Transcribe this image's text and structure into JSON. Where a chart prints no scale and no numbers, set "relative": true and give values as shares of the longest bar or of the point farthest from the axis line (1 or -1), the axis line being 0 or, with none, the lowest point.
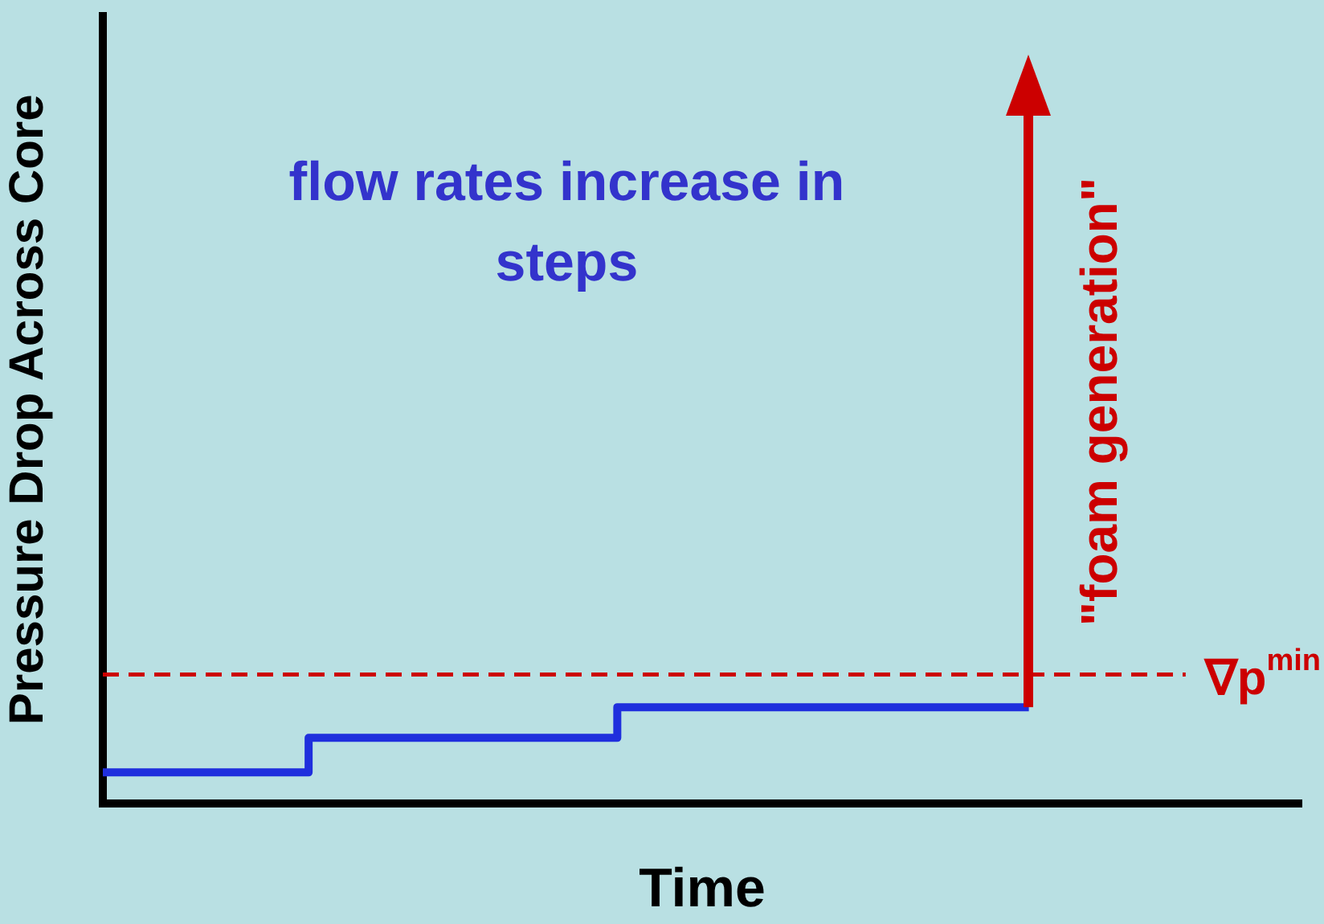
{
  "chart_data": {
    "type": "step",
    "relative": true,
    "categories": [
      null,
      null,
      null,
      null,
      null,
      null,
      null,
      null,
      null,
      null
    ],
    "series": [
      {
        "color": "#1f2fdd",
        "values": [
          0.32,
          0.32,
          0.68,
          0.68,
          0.68,
          1,
          1,
          1,
          1,
          1
        ]
      }
    ],
    "xlabel": "Time",
    "ylabel": "Pressure Drop Across Core",
    "annotations": [
      "flow rates increase in steps",
      "\"foam generation\""
    ],
    "ref_lines": [
      {
        "axis": "y",
        "value": 1.34,
        "label": "∇p$^{min}$",
        "color": "#cc0000",
        "line_style": "dashed"
      }
    ],
    "grid": false,
    "legend": false,
    "marker": "none",
    "line_style": "solid"
  }
}
